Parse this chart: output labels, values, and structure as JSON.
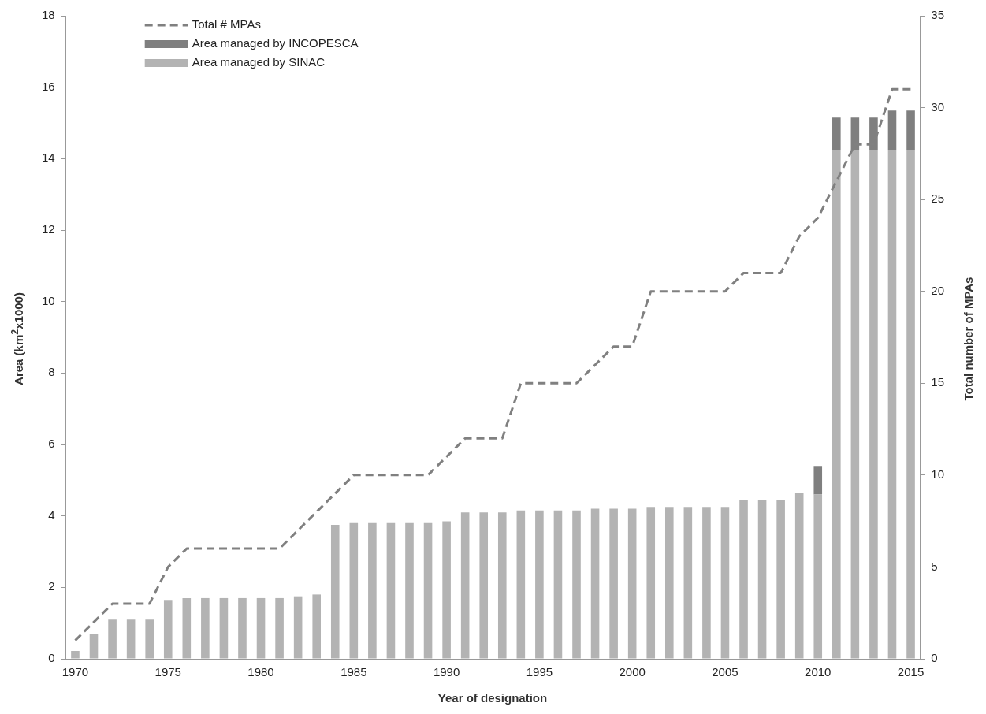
{
  "chart_data": {
    "type": "bar",
    "stacked": true,
    "xlabel": "Year of designation",
    "ylabel": "Area (km$^{2}$x1000)",
    "y2label": "Total number of MPAs",
    "categories": [
      "1970",
      null,
      null,
      null,
      null,
      "1975",
      null,
      null,
      null,
      null,
      "1980",
      null,
      null,
      null,
      null,
      "1985",
      null,
      null,
      null,
      null,
      "1990",
      null,
      null,
      null,
      null,
      "1995",
      null,
      null,
      null,
      null,
      "2000",
      null,
      null,
      null,
      null,
      "2005",
      null,
      null,
      null,
      null,
      "2010",
      null,
      null,
      null,
      null,
      "2015"
    ],
    "series": [
      {
        "name": "Area managed by SINAC",
        "color": "#b3b3b3",
        "values": [
          0.22,
          0.7,
          1.1,
          1.1,
          1.1,
          1.65,
          1.7,
          1.7,
          1.7,
          1.7,
          1.7,
          1.7,
          1.75,
          1.8,
          3.75,
          3.8,
          3.8,
          3.8,
          3.8,
          3.8,
          3.85,
          4.1,
          4.1,
          4.1,
          4.15,
          4.15,
          4.15,
          4.15,
          4.2,
          4.2,
          4.2,
          4.25,
          4.25,
          4.25,
          4.25,
          4.25,
          4.45,
          4.45,
          4.45,
          4.65,
          4.6,
          14.25,
          14.25,
          14.25,
          14.25,
          14.25
        ]
      },
      {
        "name": "Area managed by INCOPESCA",
        "color": "#7f7f7f",
        "values": [
          0,
          0,
          0,
          0,
          0,
          0,
          0,
          0,
          0,
          0,
          0,
          0,
          0,
          0,
          0,
          0,
          0,
          0,
          0,
          0,
          0,
          0,
          0,
          0,
          0,
          0,
          0,
          0,
          0,
          0,
          0,
          0,
          0,
          0,
          0,
          0,
          0,
          0,
          0,
          0,
          0.8,
          0.9,
          0.9,
          0.9,
          1.1,
          1.1
        ]
      },
      {
        "name": "Total # MPAs",
        "type": "line",
        "axis": "y2",
        "color": "#808080",
        "line_style": "dashed",
        "marker": "none",
        "values": [
          1,
          2,
          3,
          3,
          3,
          5,
          6,
          6,
          6,
          6,
          6,
          6,
          7,
          8,
          9,
          10,
          10,
          10,
          10,
          10,
          11,
          12,
          12,
          12,
          15,
          15,
          15,
          15,
          16,
          17,
          17,
          20,
          20,
          20,
          20,
          20,
          21,
          21,
          21,
          23,
          24,
          26,
          28,
          28,
          31,
          31
        ]
      }
    ],
    "ylim": [
      0,
      18
    ],
    "yticks": [
      0,
      2,
      4,
      6,
      8,
      10,
      12,
      14,
      16,
      18
    ],
    "y2lim": [
      0,
      35
    ],
    "y2ticks": [
      0,
      5,
      10,
      15,
      20,
      25,
      30,
      35
    ],
    "grid": false,
    "legend": "top left"
  }
}
